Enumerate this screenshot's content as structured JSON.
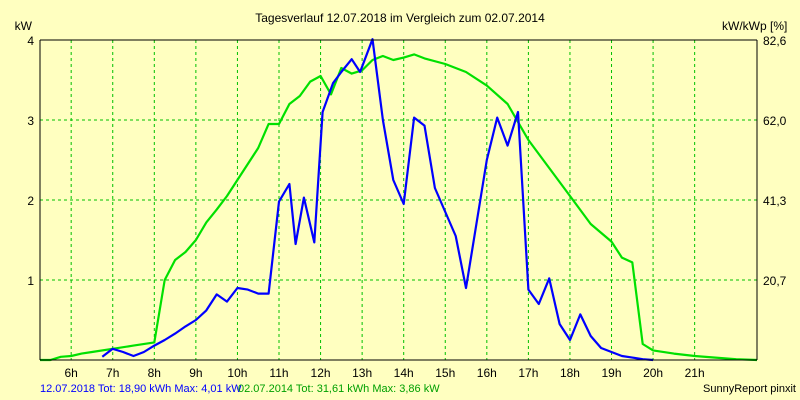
{
  "chart_data": {
    "type": "line",
    "title": "Tagesverlauf 12.07.2018 im Vergleich zum 02.07.2014",
    "ylabel_left": "kW",
    "ylabel_right": "kW/kWp [%]",
    "x_ticks": [
      "6h",
      "7h",
      "8h",
      "9h",
      "10h",
      "11h",
      "12h",
      "13h",
      "14h",
      "15h",
      "16h",
      "17h",
      "18h",
      "19h",
      "20h",
      "21h"
    ],
    "xlim": [
      5.25,
      22.5
    ],
    "ylim": [
      0,
      4
    ],
    "y_ticks": [
      "1",
      "2",
      "3",
      "4"
    ],
    "y_right_ticks": [
      "20,7",
      "41,3",
      "62,0",
      "82,6"
    ],
    "grid": true,
    "series": [
      {
        "name": "12.07.2018",
        "color": "#0000ff",
        "points": [
          [
            6.75,
            0.04
          ],
          [
            7,
            0.14
          ],
          [
            7.25,
            0.1
          ],
          [
            7.5,
            0.05
          ],
          [
            7.75,
            0.1
          ],
          [
            8,
            0.18
          ],
          [
            8.25,
            0.25
          ],
          [
            8.5,
            0.33
          ],
          [
            8.75,
            0.42
          ],
          [
            9,
            0.5
          ],
          [
            9.25,
            0.62
          ],
          [
            9.5,
            0.82
          ],
          [
            9.75,
            0.73
          ],
          [
            10,
            0.9
          ],
          [
            10.25,
            0.88
          ],
          [
            10.5,
            0.83
          ],
          [
            10.75,
            0.83
          ],
          [
            11,
            1.98
          ],
          [
            11.25,
            2.2
          ],
          [
            11.4,
            1.45
          ],
          [
            11.6,
            2.03
          ],
          [
            11.85,
            1.47
          ],
          [
            12.05,
            3.1
          ],
          [
            12.3,
            3.46
          ],
          [
            12.5,
            3.6
          ],
          [
            12.75,
            3.76
          ],
          [
            12.95,
            3.6
          ],
          [
            13.25,
            4.01
          ],
          [
            13.5,
            3.0
          ],
          [
            13.75,
            2.25
          ],
          [
            14,
            1.95
          ],
          [
            14.25,
            3.03
          ],
          [
            14.5,
            2.93
          ],
          [
            14.75,
            2.15
          ],
          [
            15,
            1.85
          ],
          [
            15.25,
            1.55
          ],
          [
            15.5,
            0.9
          ],
          [
            15.75,
            1.7
          ],
          [
            16,
            2.5
          ],
          [
            16.25,
            3.03
          ],
          [
            16.5,
            2.68
          ],
          [
            16.75,
            3.1
          ],
          [
            17,
            0.88
          ],
          [
            17.25,
            0.7
          ],
          [
            17.5,
            1.02
          ],
          [
            17.75,
            0.45
          ],
          [
            18,
            0.25
          ],
          [
            18.25,
            0.57
          ],
          [
            18.5,
            0.3
          ],
          [
            18.75,
            0.15
          ],
          [
            19,
            0.1
          ],
          [
            19.25,
            0.05
          ],
          [
            19.5,
            0.03
          ],
          [
            19.75,
            0.01
          ],
          [
            20,
            0.0
          ]
        ]
      },
      {
        "name": "02.07.2014",
        "color": "#00e000",
        "points": [
          [
            5.25,
            0.0
          ],
          [
            5.5,
            0.0
          ],
          [
            5.75,
            0.04
          ],
          [
            6,
            0.05
          ],
          [
            6.25,
            0.08
          ],
          [
            6.5,
            0.1
          ],
          [
            7,
            0.14
          ],
          [
            7.5,
            0.18
          ],
          [
            8,
            0.22
          ],
          [
            8.25,
            1.0
          ],
          [
            8.5,
            1.25
          ],
          [
            8.75,
            1.35
          ],
          [
            9,
            1.5
          ],
          [
            9.25,
            1.72
          ],
          [
            9.5,
            1.88
          ],
          [
            9.75,
            2.05
          ],
          [
            10,
            2.25
          ],
          [
            10.25,
            2.45
          ],
          [
            10.5,
            2.65
          ],
          [
            10.75,
            2.95
          ],
          [
            11,
            2.95
          ],
          [
            11.25,
            3.2
          ],
          [
            11.5,
            3.3
          ],
          [
            11.75,
            3.48
          ],
          [
            12,
            3.55
          ],
          [
            12.25,
            3.32
          ],
          [
            12.5,
            3.65
          ],
          [
            12.75,
            3.58
          ],
          [
            13,
            3.62
          ],
          [
            13.25,
            3.75
          ],
          [
            13.5,
            3.8
          ],
          [
            13.75,
            3.75
          ],
          [
            14,
            3.78
          ],
          [
            14.25,
            3.82
          ],
          [
            14.5,
            3.77
          ],
          [
            15,
            3.7
          ],
          [
            15.5,
            3.6
          ],
          [
            16,
            3.43
          ],
          [
            16.5,
            3.2
          ],
          [
            17,
            2.75
          ],
          [
            17.5,
            2.4
          ],
          [
            18,
            2.05
          ],
          [
            18.5,
            1.7
          ],
          [
            19,
            1.48
          ],
          [
            19.25,
            1.28
          ],
          [
            19.5,
            1.22
          ],
          [
            19.75,
            0.2
          ],
          [
            20,
            0.12
          ],
          [
            20.5,
            0.08
          ],
          [
            21,
            0.05
          ],
          [
            21.5,
            0.03
          ],
          [
            22,
            0.01
          ],
          [
            22.5,
            0.0
          ]
        ]
      }
    ]
  },
  "legend": {
    "blue": "12.07.2018 Tot: 18,90 kWh Max: 4,01 kW",
    "green": "02.07.2014 Tot: 31,61 kWh Max: 3,86 kW"
  },
  "footer": {
    "brand": "SunnyReport pinxit"
  }
}
